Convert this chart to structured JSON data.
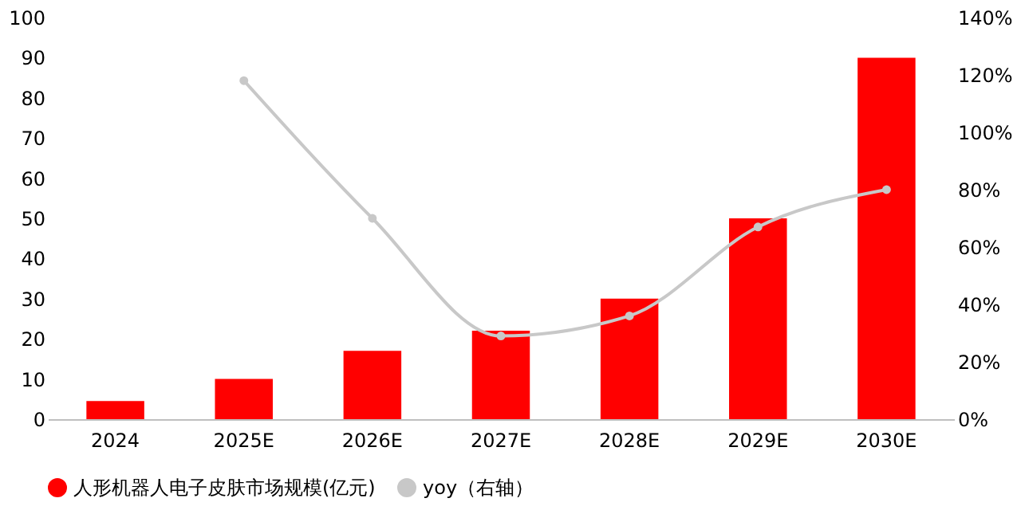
{
  "chart_data": {
    "type": "bar",
    "categories": [
      "2024",
      "2025E",
      "2026E",
      "2027E",
      "2028E",
      "2029E",
      "2030E"
    ],
    "series": [
      {
        "name": "人形机器人电子皮肤市场规模(亿元)",
        "color": "#ff0000",
        "values": [
          4.5,
          10,
          17,
          22,
          30,
          50,
          90
        ]
      },
      {
        "name": "yoy（右轴）",
        "color": "#c8c8c8",
        "type": "line",
        "axis": "y2",
        "marker": "circle",
        "values": [
          null,
          118,
          70,
          29,
          36,
          67,
          80
        ]
      }
    ],
    "ylim": [
      0,
      100
    ],
    "yticks": [
      0,
      10,
      20,
      30,
      40,
      50,
      60,
      70,
      80,
      90,
      100
    ],
    "y2lim": [
      0,
      140
    ],
    "y2ticks": [
      {
        "value": 0,
        "label": "0%"
      },
      {
        "value": 20,
        "label": "20%"
      },
      {
        "value": 40,
        "label": "40%"
      },
      {
        "value": 60,
        "label": "60%"
      },
      {
        "value": 80,
        "label": "80%"
      },
      {
        "value": 100,
        "label": "100%"
      },
      {
        "value": 120,
        "label": "120%"
      },
      {
        "value": 140,
        "label": "140%"
      }
    ],
    "grid": false,
    "legend": "bottom"
  }
}
